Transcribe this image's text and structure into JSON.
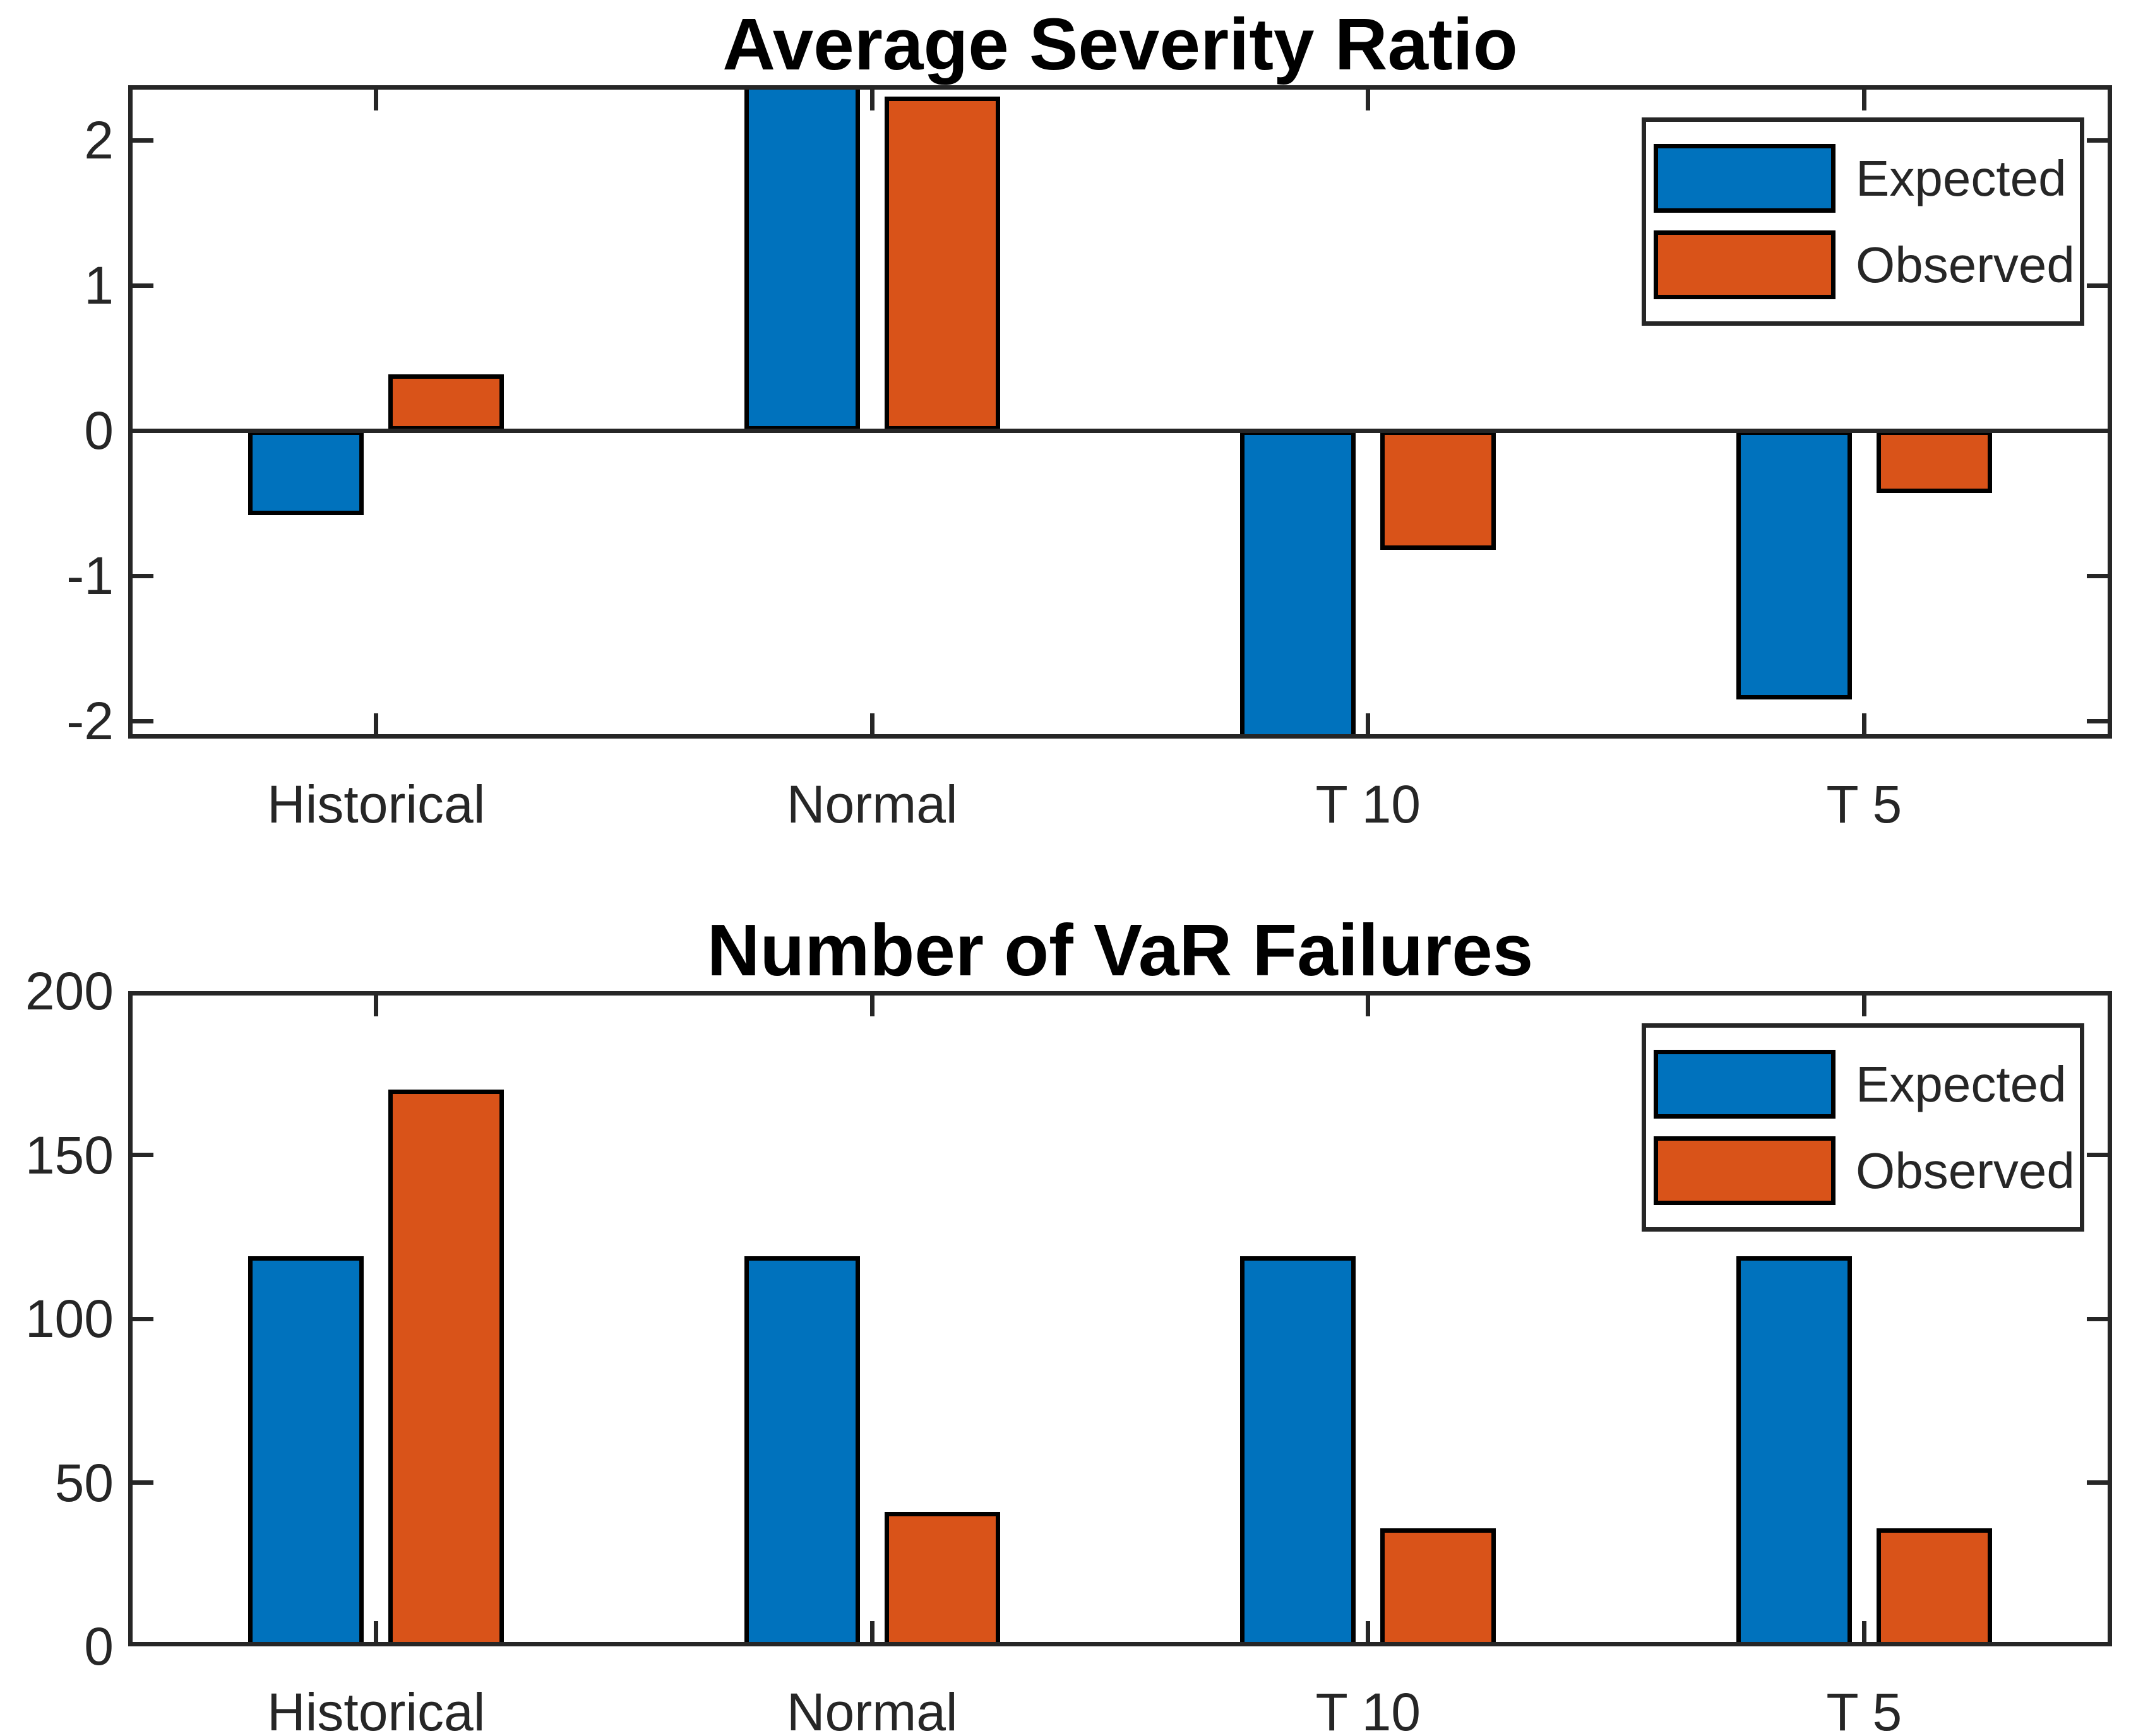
{
  "figure": {
    "background": "#ffffff"
  },
  "colors": {
    "expected": "#0072BD",
    "observed": "#D95319",
    "axis": "#262626",
    "bar_edge": "#000000",
    "title_text": "#000000"
  },
  "legend": {
    "items": [
      {
        "label": "Expected",
        "color_key": "expected"
      },
      {
        "label": "Observed",
        "color_key": "observed"
      }
    ],
    "position": "top-right"
  },
  "chart_data": [
    {
      "type": "bar",
      "title": "Average Severity Ratio",
      "categories": [
        "Historical",
        "Normal",
        "T 10",
        "T 5"
      ],
      "series": [
        {
          "name": "Expected",
          "values": [
            -0.58,
            2.38,
            -2.12,
            -1.85
          ],
          "clipped": [
            "none",
            "top",
            "bottom",
            "none"
          ]
        },
        {
          "name": "Observed",
          "values": [
            0.39,
            2.3,
            -0.82,
            -0.43
          ],
          "clipped": [
            "none",
            "none",
            "none",
            "none"
          ]
        }
      ],
      "ylim": [
        -2.12,
        2.38
      ],
      "yticks": [
        -2,
        -1,
        0,
        1,
        2
      ],
      "xlabel": "",
      "ylabel": "",
      "grid": false,
      "legend_position": "top-right"
    },
    {
      "type": "bar",
      "title": "Number of VaR Failures",
      "categories": [
        "Historical",
        "Normal",
        "T 10",
        "T 5"
      ],
      "series": [
        {
          "name": "Expected",
          "values": [
            119,
            119,
            119,
            119
          ],
          "clipped": [
            "none",
            "none",
            "none",
            "none"
          ]
        },
        {
          "name": "Observed",
          "values": [
            170,
            41,
            36,
            36
          ],
          "clipped": [
            "none",
            "none",
            "none",
            "none"
          ]
        }
      ],
      "ylim": [
        0,
        200
      ],
      "yticks": [
        0,
        50,
        100,
        150,
        200
      ],
      "xlabel": "",
      "ylabel": "",
      "grid": false,
      "legend_position": "top-right"
    }
  ]
}
